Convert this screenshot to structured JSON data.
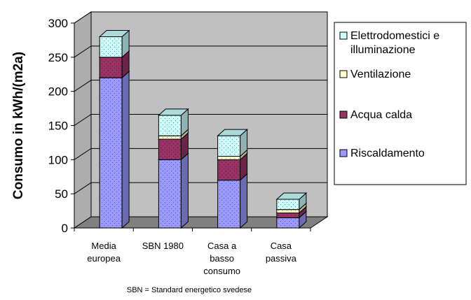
{
  "chart_data": {
    "type": "bar",
    "stacked": true,
    "three_d": true,
    "categories": [
      [
        "Media",
        "europea"
      ],
      [
        "SBN 1980"
      ],
      [
        "Casa a",
        "basso",
        "consumo"
      ],
      [
        "Casa",
        "passiva"
      ]
    ],
    "series": [
      {
        "name": "Riscaldamento",
        "color": "#9999ff",
        "values": [
          220,
          100,
          70,
          15
        ]
      },
      {
        "name": "Acqua calda",
        "color": "#993366",
        "values": [
          30,
          30,
          30,
          7
        ]
      },
      {
        "name": "Ventilazione",
        "color": "#ffffcc",
        "values": [
          0,
          5,
          5,
          5
        ]
      },
      {
        "name": "Elettrodomestici e illuminazione",
        "color": "#ccffff",
        "values": [
          30,
          30,
          30,
          15
        ]
      }
    ],
    "legend_labels": [
      [
        "Elettrodomestici e",
        "illuminazione"
      ],
      [
        "Ventilazione"
      ],
      [
        "Acqua calda"
      ],
      [
        "Riscaldamento"
      ]
    ],
    "ylabel": "Consumo in kWh/(m2a)",
    "ylim": [
      0,
      300
    ],
    "yticks": [
      0,
      50,
      100,
      150,
      200,
      250,
      300
    ],
    "grid": true,
    "legend_position": "right",
    "footnote": "SBN = Standard energetico svedese",
    "colors": {
      "wall": "#c0c0c0",
      "floor": "#808080",
      "gridline": "#000000"
    }
  }
}
